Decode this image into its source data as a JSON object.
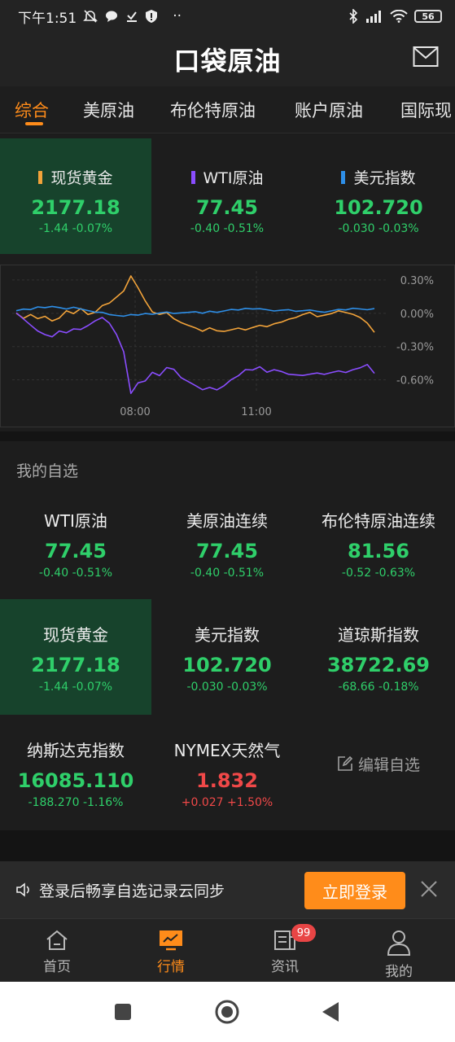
{
  "status": {
    "time": "下午1:51",
    "dots": "··",
    "battery": "56"
  },
  "header": {
    "logo": "口袋原油"
  },
  "tabs": [
    {
      "label": "综合",
      "active": true
    },
    {
      "label": "美原油"
    },
    {
      "label": "布伦特原油"
    },
    {
      "label": "账户原油"
    },
    {
      "label": "国际现"
    }
  ],
  "tickers": [
    {
      "name": "现货黄金",
      "price": "2177.18",
      "change": "-1.44",
      "pct": "-0.07%",
      "color": "#f2a33a"
    },
    {
      "name": "WTI原油",
      "price": "77.45",
      "change": "-0.40",
      "pct": "-0.51%",
      "color": "#8a4dff"
    },
    {
      "name": "美元指数",
      "price": "102.720",
      "change": "-0.030",
      "pct": "-0.03%",
      "color": "#2e8fe8"
    }
  ],
  "chart_data": {
    "type": "line",
    "y_tick_labels": [
      "0.30%",
      "0.00%",
      "-0.30%",
      "-0.60%"
    ],
    "y_ticks": [
      0.3,
      0.0,
      -0.3,
      -0.6
    ],
    "x_tick_labels": [
      "08:00",
      "11:00"
    ],
    "ylim": [
      -0.72,
      0.38
    ],
    "grid": true,
    "series": [
      {
        "color": "#f2a33a",
        "values": [
          0.0,
          -0.05,
          -0.02,
          -0.06,
          -0.04,
          -0.08,
          -0.05,
          0.02,
          0.0,
          0.05,
          0.0,
          0.02,
          0.08,
          0.1,
          0.15,
          0.2,
          0.33,
          0.22,
          0.1,
          0.0,
          -0.02,
          0.0,
          -0.05,
          -0.08,
          -0.1,
          -0.12,
          -0.15,
          -0.12,
          -0.15,
          -0.16,
          -0.15,
          -0.14,
          -0.16,
          -0.14,
          -0.12,
          -0.13,
          -0.1,
          -0.08,
          -0.05,
          -0.03,
          0.0,
          0.02,
          -0.02,
          -0.01,
          0.0,
          0.02,
          0.0,
          -0.02,
          -0.05,
          -0.1,
          -0.18
        ]
      },
      {
        "color": "#8a4dff",
        "values": [
          0.0,
          -0.05,
          -0.1,
          -0.15,
          -0.18,
          -0.2,
          -0.15,
          -0.17,
          -0.14,
          -0.15,
          -0.12,
          -0.08,
          -0.05,
          -0.1,
          -0.2,
          -0.35,
          -0.72,
          -0.62,
          -0.6,
          -0.52,
          -0.55,
          -0.48,
          -0.5,
          -0.58,
          -0.62,
          -0.66,
          -0.7,
          -0.68,
          -0.7,
          -0.66,
          -0.6,
          -0.56,
          -0.5,
          -0.5,
          -0.47,
          -0.52,
          -0.5,
          -0.52,
          -0.55,
          -0.56,
          -0.57,
          -0.56,
          -0.55,
          -0.56,
          -0.54,
          -0.52,
          -0.53,
          -0.5,
          -0.48,
          -0.45,
          -0.53
        ]
      },
      {
        "color": "#2e8fe8",
        "values": [
          0.03,
          0.04,
          0.03,
          0.05,
          0.04,
          0.05,
          0.04,
          0.03,
          0.05,
          0.04,
          0.03,
          0.02,
          0.02,
          0.0,
          -0.01,
          -0.02,
          -0.01,
          -0.02,
          -0.01,
          -0.02,
          -0.01,
          0.0,
          -0.01,
          0.0,
          0.01,
          0.02,
          0.01,
          0.03,
          0.02,
          0.03,
          0.04,
          0.03,
          0.04,
          0.03,
          0.03,
          0.02,
          0.01,
          0.02,
          0.03,
          0.02,
          0.03,
          0.04,
          0.03,
          0.02,
          0.03,
          0.04,
          0.03,
          0.04,
          0.03,
          0.02,
          0.03
        ]
      }
    ]
  },
  "watchlist": {
    "title": "我的自选",
    "items": [
      {
        "name": "WTI原油",
        "price": "77.45",
        "change": "-0.40",
        "pct": "-0.51%"
      },
      {
        "name": "美原油连续",
        "price": "77.45",
        "change": "-0.40",
        "pct": "-0.51%"
      },
      {
        "name": "布伦特原油连续",
        "price": "81.56",
        "change": "-0.52",
        "pct": "-0.63%"
      },
      {
        "name": "现货黄金",
        "price": "2177.18",
        "change": "-1.44",
        "pct": "-0.07%"
      },
      {
        "name": "美元指数",
        "price": "102.720",
        "change": "-0.030",
        "pct": "-0.03%"
      },
      {
        "name": "道琼斯指数",
        "price": "38722.69",
        "change": "-68.66",
        "pct": "-0.18%"
      },
      {
        "name": "纳斯达克指数",
        "price": "16085.110",
        "change": "-188.270",
        "pct": "-1.16%"
      },
      {
        "name": "NYMEX天然气",
        "price": "1.832",
        "change": "+0.027",
        "pct": "+1.50%"
      }
    ],
    "edit_label": "编辑自选"
  },
  "login": {
    "text": "登录后畅享自选记录云同步",
    "button": "立即登录"
  },
  "nav": [
    {
      "label": "首页"
    },
    {
      "label": "行情",
      "active": true
    },
    {
      "label": "资讯",
      "badge": "99"
    },
    {
      "label": "我的"
    }
  ]
}
